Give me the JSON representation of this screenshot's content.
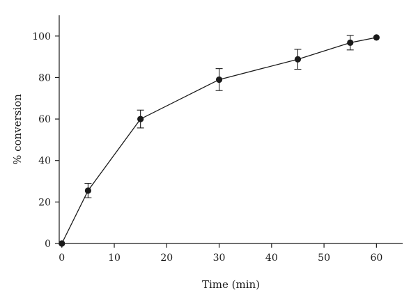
{
  "chart_data": {
    "type": "scatter",
    "title": "",
    "xlabel": "Time (min)",
    "ylabel": "% conversion",
    "xlim": [
      -0.5,
      65
    ],
    "ylim": [
      0,
      110
    ],
    "xticks": [
      0,
      10,
      20,
      30,
      40,
      50,
      60
    ],
    "yticks": [
      0,
      20,
      40,
      60,
      80,
      100
    ],
    "grid": false,
    "legend": "none",
    "series": [
      {
        "x": [
          0,
          5,
          15,
          30,
          45,
          55,
          60
        ],
        "y": [
          0,
          25.5,
          60,
          79,
          88.8,
          96.8,
          99.3
        ],
        "error": [
          0,
          3.5,
          4.3,
          5.3,
          4.8,
          3.5,
          0
        ],
        "style": "line-with-markers",
        "color": "#1a1a1a"
      }
    ]
  }
}
